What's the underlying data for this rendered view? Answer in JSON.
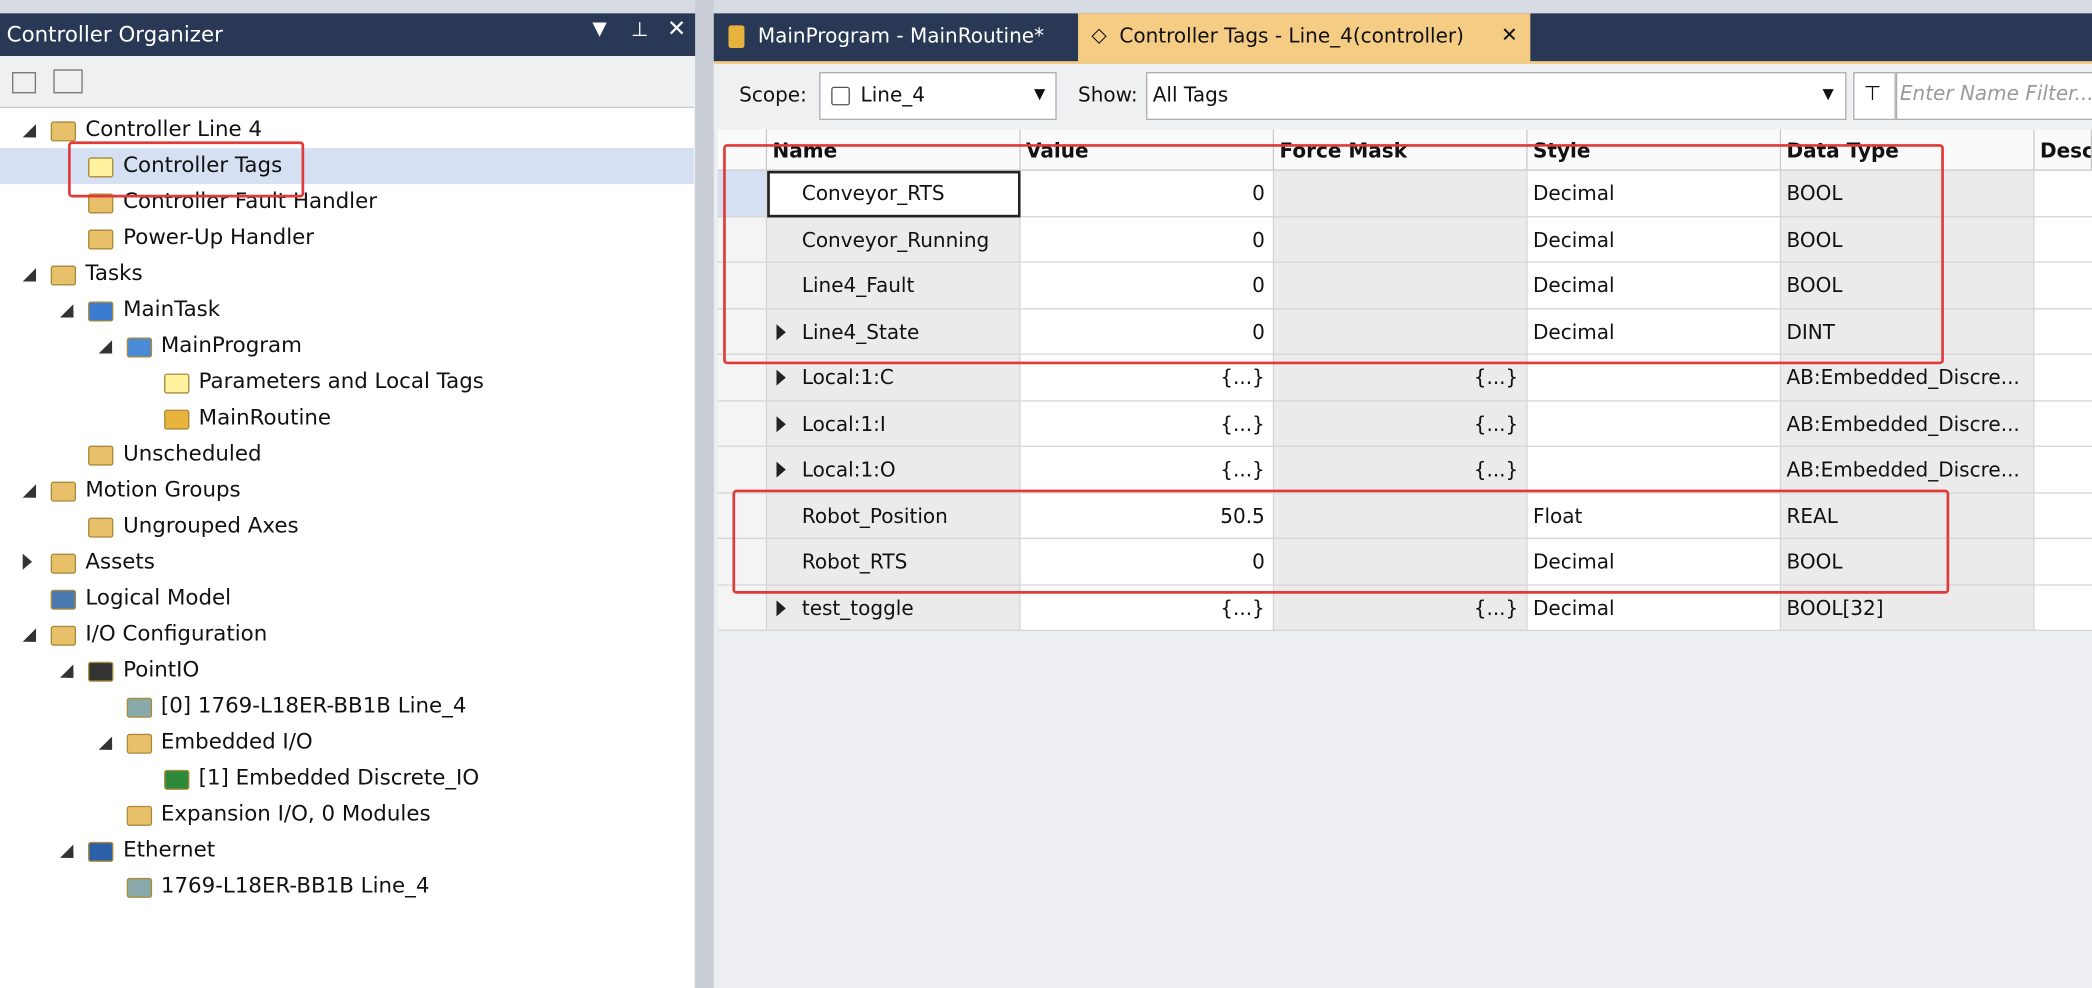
{
  "organizer": {
    "title": "Controller Organizer",
    "tree": [
      "Controller Line 4",
      "Controller Tags",
      "Controller Fault Handler",
      "Power-Up Handler",
      "Tasks",
      "MainTask",
      "MainProgram",
      "Parameters and Local Tags",
      "MainRoutine",
      "Unscheduled",
      "Motion Groups",
      "Ungrouped Axes",
      "Assets",
      "Logical Model",
      "I/O Configuration",
      "PointIO",
      "[0] 1769-L18ER-BB1B Line_4",
      "Embedded I/O",
      "[1] Embedded Discrete_IO",
      "Expansion I/O, 0 Modules",
      "Ethernet",
      "1769-L18ER-BB1B Line_4"
    ]
  },
  "tabs": [
    "MainProgram - MainRoutine*",
    "Controller Tags - Line_4(controller)"
  ],
  "toolbar": {
    "scope_label": "Scope:",
    "scope": "Line_4",
    "show_label": "Show:",
    "show": "All Tags",
    "filter_placeholder": "Enter Name Filter..."
  },
  "table": {
    "columns": [
      "Name",
      "Value",
      "Force Mask",
      "Style",
      "Data Type",
      "Desc"
    ],
    "rows": [
      [
        "Conveyor_RTS",
        "0",
        "",
        "Decimal",
        "BOOL"
      ],
      [
        "Conveyor_Running",
        "0",
        "",
        "Decimal",
        "BOOL"
      ],
      [
        "Line4_Fault",
        "0",
        "",
        "Decimal",
        "BOOL"
      ],
      [
        "Line4_State",
        "0",
        "",
        "Decimal",
        "DINT"
      ],
      [
        "Local:1:C",
        "{...}",
        "{...}",
        "",
        "AB:Embedded_Discre..."
      ],
      [
        "Local:1:I",
        "{...}",
        "{...}",
        "",
        "AB:Embedded_Discre..."
      ],
      [
        "Local:1:O",
        "{...}",
        "{...}",
        "",
        "AB:Embedded_Discre..."
      ],
      [
        "Robot_Position",
        "50.5",
        "",
        "Float",
        "REAL"
      ],
      [
        "Robot_RTS",
        "0",
        "",
        "Decimal",
        "BOOL"
      ],
      [
        "test_toggle",
        "{...}",
        "{...}",
        "Decimal",
        "BOOL[32]"
      ]
    ]
  }
}
